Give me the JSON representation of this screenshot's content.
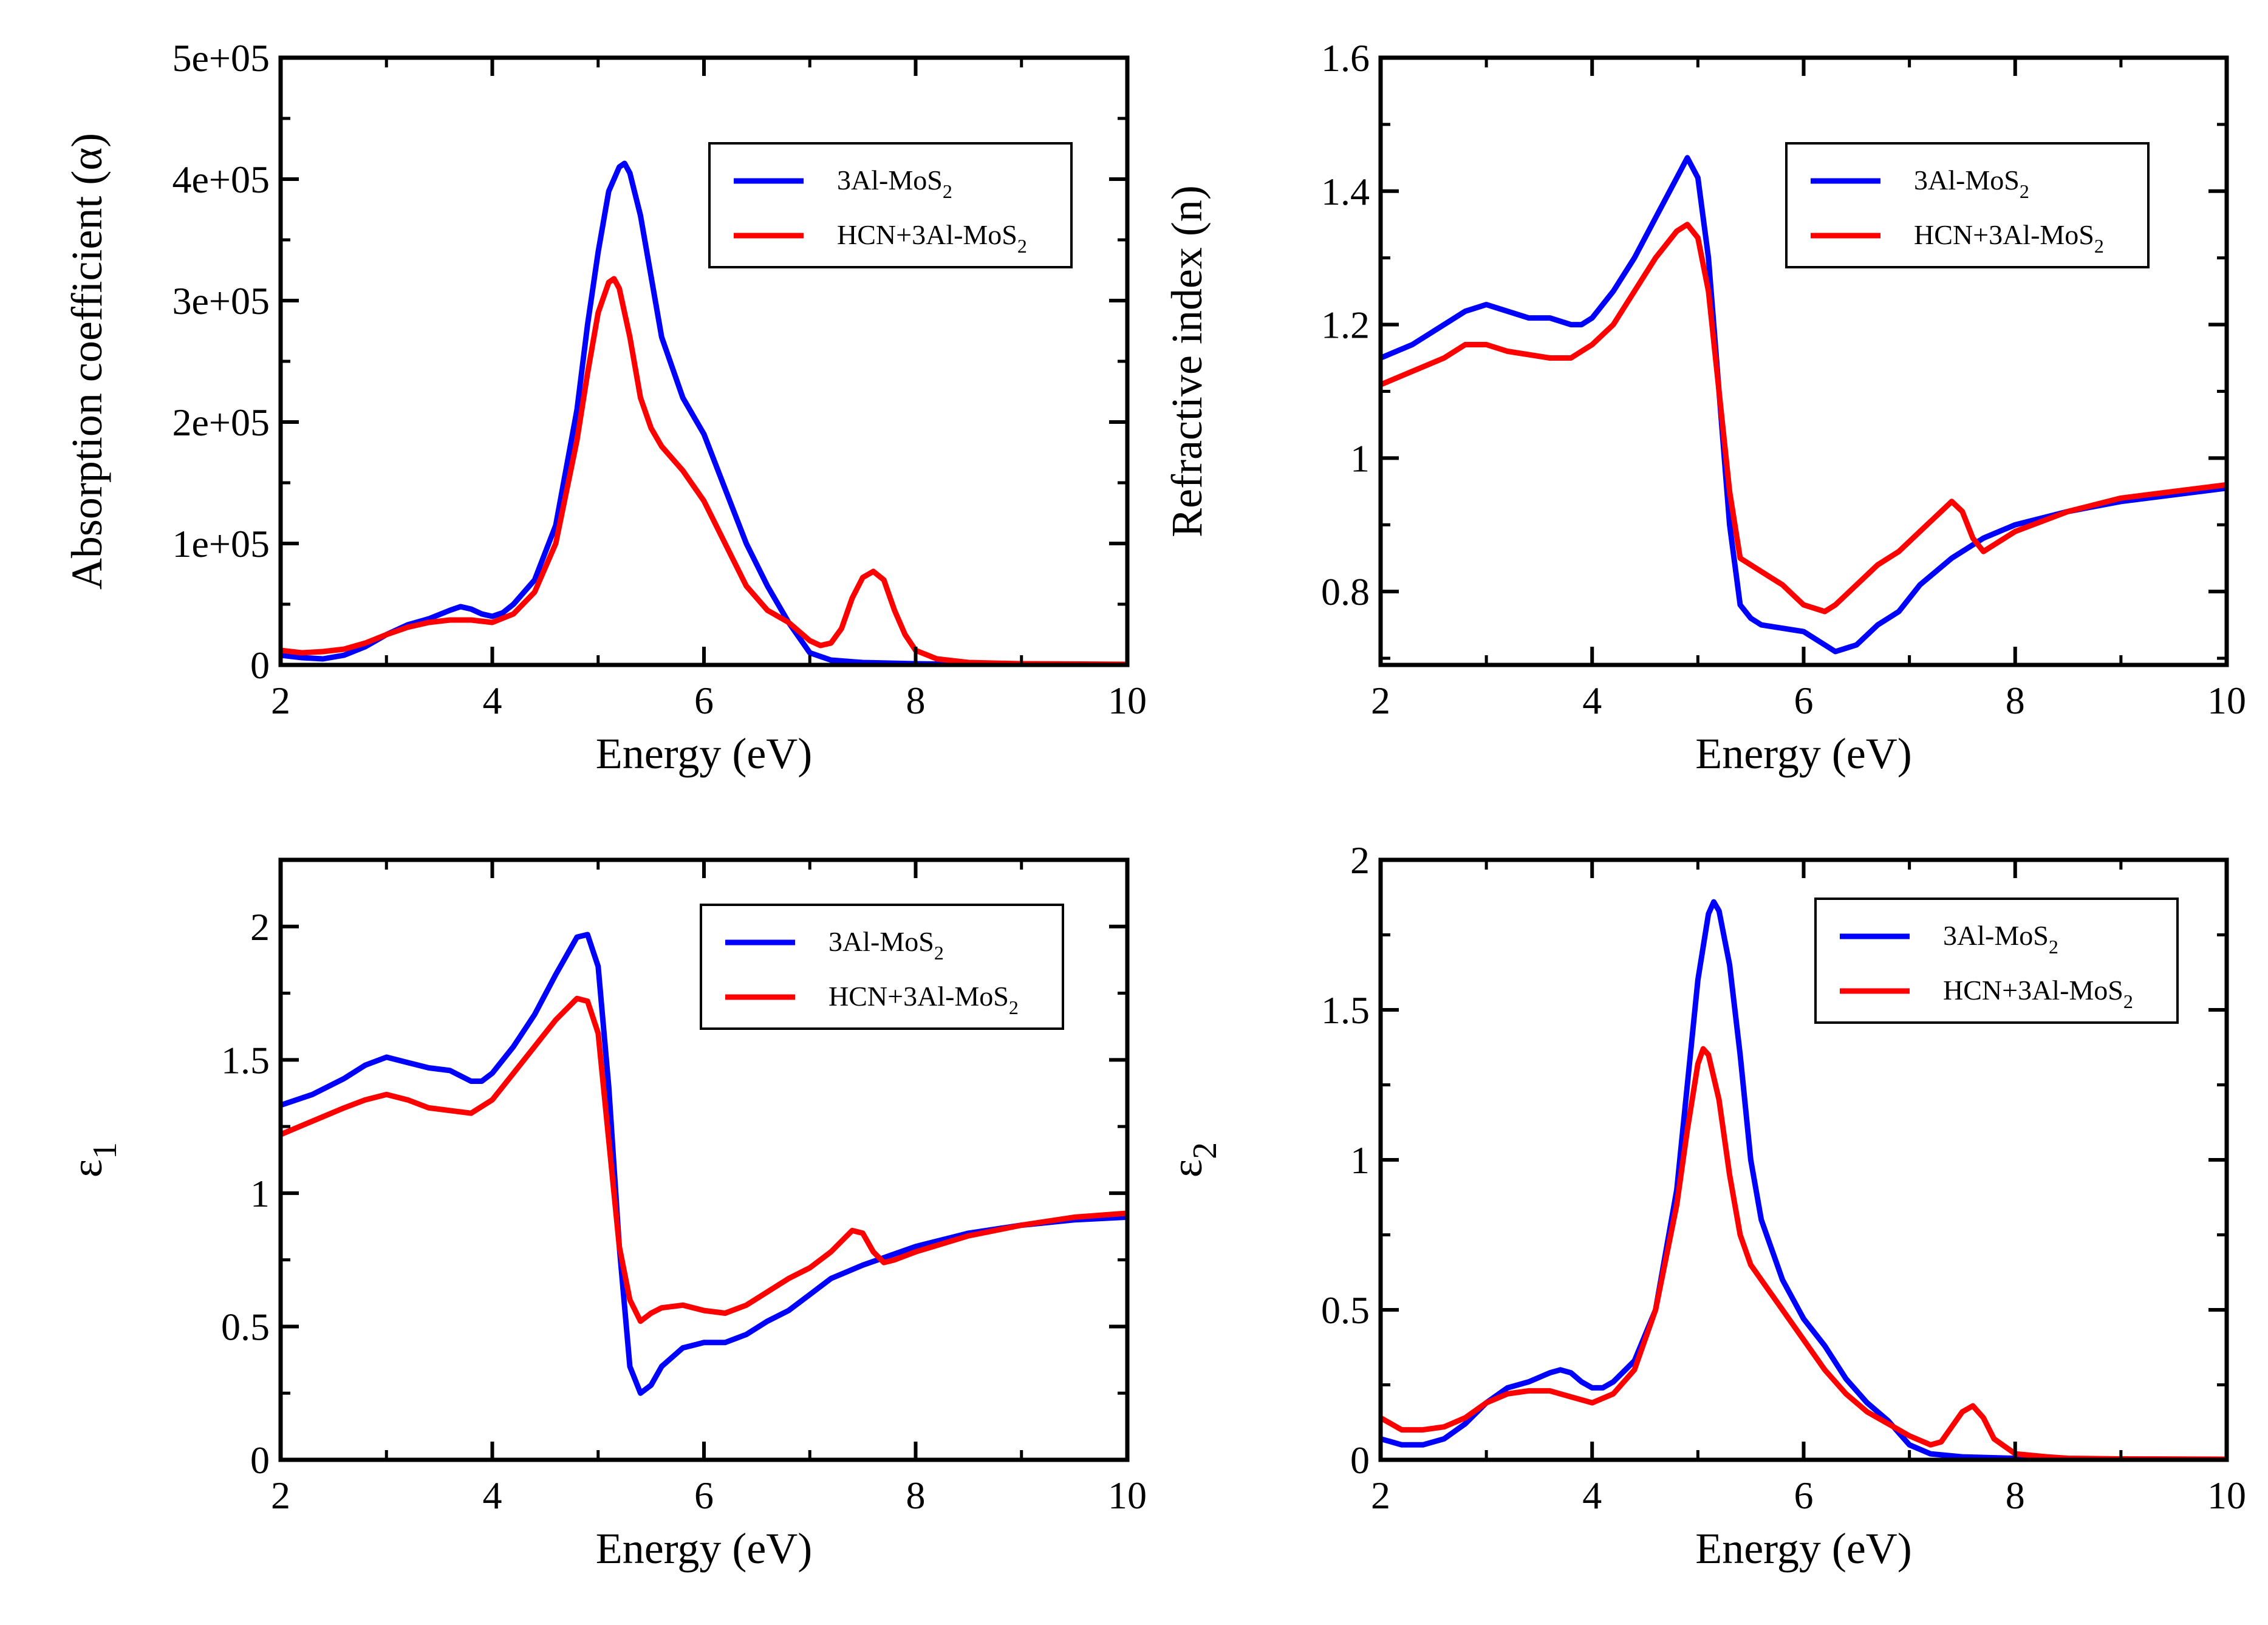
{
  "colors": {
    "series_a": "#0000ff",
    "series_b": "#ff0000",
    "axes": "#000000"
  },
  "chart_data": [
    {
      "type": "line",
      "title": "",
      "xlabel": "Energy (eV)",
      "ylabel": "Absorption coefficient (α)",
      "ylabel_main": "Absorption coefficient (α)",
      "ylabel_sub": "",
      "xlim": [
        2,
        10
      ],
      "ylim": [
        0,
        500000
      ],
      "xticks": [
        2,
        4,
        6,
        8,
        10
      ],
      "xtick_labels": [
        "2",
        "4",
        "6",
        "8",
        "10"
      ],
      "yticks": [
        0,
        100000,
        200000,
        300000,
        400000,
        500000
      ],
      "ytick_labels": [
        "0",
        "1e+05",
        "2e+05",
        "3e+05",
        "4e+05",
        "5e+05"
      ],
      "legend": {
        "position": "top-right",
        "entries": [
          {
            "base": "3Al-MoS",
            "sub": "2"
          },
          {
            "base": "HCN+3Al-MoS",
            "sub": "2"
          }
        ]
      },
      "series": [
        {
          "name": "3Al-MoS2",
          "x": [
            2.0,
            2.2,
            2.4,
            2.6,
            2.8,
            3.0,
            3.2,
            3.4,
            3.6,
            3.7,
            3.8,
            3.9,
            4.0,
            4.1,
            4.2,
            4.4,
            4.6,
            4.8,
            4.9,
            5.0,
            5.1,
            5.2,
            5.25,
            5.3,
            5.4,
            5.5,
            5.6,
            5.8,
            6.0,
            6.2,
            6.4,
            6.6,
            6.8,
            7.0,
            7.2,
            7.5,
            8.0,
            8.5,
            9.0,
            10.0
          ],
          "values": [
            8000,
            6000,
            5000,
            8000,
            15000,
            25000,
            33000,
            38000,
            45000,
            48000,
            46000,
            42000,
            40000,
            43000,
            50000,
            70000,
            115000,
            210000,
            280000,
            340000,
            390000,
            410000,
            413000,
            405000,
            370000,
            320000,
            270000,
            220000,
            190000,
            145000,
            100000,
            65000,
            35000,
            10000,
            4000,
            2000,
            1000,
            500,
            200,
            0
          ]
        },
        {
          "name": "HCN+3Al-MoS2",
          "x": [
            2.0,
            2.2,
            2.4,
            2.6,
            2.8,
            3.0,
            3.2,
            3.4,
            3.6,
            3.8,
            4.0,
            4.2,
            4.4,
            4.6,
            4.8,
            4.9,
            5.0,
            5.1,
            5.15,
            5.2,
            5.3,
            5.4,
            5.5,
            5.6,
            5.8,
            6.0,
            6.2,
            6.4,
            6.6,
            6.8,
            7.0,
            7.1,
            7.2,
            7.3,
            7.4,
            7.5,
            7.6,
            7.7,
            7.8,
            7.9,
            8.0,
            8.2,
            8.5,
            9.0,
            10.0
          ],
          "values": [
            12000,
            10000,
            11000,
            13000,
            18000,
            25000,
            31000,
            35000,
            37000,
            37000,
            35000,
            42000,
            60000,
            100000,
            185000,
            240000,
            290000,
            315000,
            318000,
            310000,
            270000,
            220000,
            195000,
            180000,
            160000,
            135000,
            100000,
            65000,
            45000,
            35000,
            20000,
            16000,
            18000,
            30000,
            55000,
            72000,
            77000,
            70000,
            45000,
            25000,
            12000,
            5000,
            2000,
            1000,
            500
          ]
        }
      ]
    },
    {
      "type": "line",
      "title": "",
      "xlabel": "Energy (eV)",
      "ylabel": "Refractive index (n)",
      "ylabel_main": "Refractive index (n)",
      "ylabel_sub": "",
      "xlim": [
        2,
        10
      ],
      "ylim": [
        0.69,
        1.6
      ],
      "xticks": [
        2,
        4,
        6,
        8,
        10
      ],
      "xtick_labels": [
        "2",
        "4",
        "6",
        "8",
        "10"
      ],
      "yticks": [
        0.8,
        1.0,
        1.2,
        1.4,
        1.6
      ],
      "ytick_labels": [
        "0.8",
        "1",
        "1.2",
        "1.4",
        "1.6"
      ],
      "legend": {
        "position": "top-right",
        "entries": [
          {
            "base": "3Al-MoS",
            "sub": "2"
          },
          {
            "base": "HCN+3Al-MoS",
            "sub": "2"
          }
        ]
      },
      "series": [
        {
          "name": "3Al-MoS2",
          "x": [
            2.0,
            2.3,
            2.6,
            2.8,
            3.0,
            3.2,
            3.4,
            3.6,
            3.8,
            3.9,
            4.0,
            4.2,
            4.4,
            4.6,
            4.8,
            4.9,
            5.0,
            5.1,
            5.2,
            5.3,
            5.4,
            5.5,
            5.6,
            5.8,
            6.0,
            6.2,
            6.3,
            6.5,
            6.7,
            6.9,
            7.1,
            7.4,
            7.7,
            8.0,
            8.5,
            9.0,
            10.0
          ],
          "values": [
            1.15,
            1.17,
            1.2,
            1.22,
            1.23,
            1.22,
            1.21,
            1.21,
            1.2,
            1.2,
            1.21,
            1.25,
            1.3,
            1.36,
            1.42,
            1.45,
            1.42,
            1.3,
            1.1,
            0.9,
            0.78,
            0.76,
            0.75,
            0.745,
            0.74,
            0.72,
            0.71,
            0.72,
            0.75,
            0.77,
            0.81,
            0.85,
            0.88,
            0.9,
            0.92,
            0.935,
            0.955
          ]
        },
        {
          "name": "HCN+3Al-MoS2",
          "x": [
            2.0,
            2.3,
            2.6,
            2.8,
            3.0,
            3.2,
            3.4,
            3.6,
            3.8,
            3.9,
            4.0,
            4.2,
            4.4,
            4.6,
            4.8,
            4.9,
            5.0,
            5.1,
            5.2,
            5.3,
            5.4,
            5.5,
            5.6,
            5.8,
            6.0,
            6.2,
            6.3,
            6.5,
            6.7,
            6.9,
            7.1,
            7.3,
            7.4,
            7.5,
            7.6,
            7.7,
            7.8,
            8.0,
            8.5,
            9.0,
            10.0
          ],
          "values": [
            1.11,
            1.13,
            1.15,
            1.17,
            1.17,
            1.16,
            1.155,
            1.15,
            1.15,
            1.16,
            1.17,
            1.2,
            1.25,
            1.3,
            1.34,
            1.35,
            1.33,
            1.25,
            1.1,
            0.95,
            0.85,
            0.84,
            0.83,
            0.81,
            0.78,
            0.77,
            0.78,
            0.81,
            0.84,
            0.86,
            0.89,
            0.92,
            0.935,
            0.92,
            0.88,
            0.86,
            0.87,
            0.89,
            0.92,
            0.94,
            0.96
          ]
        }
      ]
    },
    {
      "type": "line",
      "title": "",
      "xlabel": "Energy (eV)",
      "ylabel": "ε1",
      "ylabel_main": "ε",
      "ylabel_sub": "1",
      "xlim": [
        2,
        10
      ],
      "ylim": [
        0,
        2.25
      ],
      "xticks": [
        2,
        4,
        6,
        8,
        10
      ],
      "xtick_labels": [
        "2",
        "4",
        "6",
        "8",
        "10"
      ],
      "yticks": [
        0,
        0.5,
        1.0,
        1.5,
        2.0
      ],
      "ytick_labels": [
        "0",
        "0.5",
        "1",
        "1.5",
        "2"
      ],
      "legend": {
        "position": "top-right",
        "entries": [
          {
            "base": "3Al-MoS",
            "sub": "2"
          },
          {
            "base": "HCN+3Al-MoS",
            "sub": "2"
          }
        ]
      },
      "series": [
        {
          "name": "3Al-MoS2",
          "x": [
            2.0,
            2.3,
            2.6,
            2.8,
            3.0,
            3.2,
            3.4,
            3.6,
            3.8,
            3.9,
            4.0,
            4.2,
            4.4,
            4.6,
            4.8,
            4.9,
            5.0,
            5.1,
            5.2,
            5.3,
            5.4,
            5.5,
            5.6,
            5.8,
            6.0,
            6.2,
            6.4,
            6.6,
            6.8,
            7.0,
            7.2,
            7.5,
            8.0,
            8.5,
            9.0,
            9.5,
            10.0
          ],
          "values": [
            1.33,
            1.37,
            1.43,
            1.48,
            1.51,
            1.49,
            1.47,
            1.46,
            1.42,
            1.42,
            1.45,
            1.55,
            1.67,
            1.82,
            1.96,
            1.97,
            1.85,
            1.4,
            0.8,
            0.35,
            0.25,
            0.28,
            0.35,
            0.42,
            0.44,
            0.44,
            0.47,
            0.52,
            0.56,
            0.62,
            0.68,
            0.73,
            0.8,
            0.85,
            0.88,
            0.9,
            0.91
          ]
        },
        {
          "name": "HCN+3Al-MoS2",
          "x": [
            2.0,
            2.3,
            2.6,
            2.8,
            3.0,
            3.2,
            3.4,
            3.6,
            3.8,
            4.0,
            4.2,
            4.4,
            4.6,
            4.8,
            4.9,
            5.0,
            5.1,
            5.2,
            5.3,
            5.4,
            5.5,
            5.6,
            5.8,
            6.0,
            6.2,
            6.4,
            6.6,
            6.8,
            7.0,
            7.2,
            7.4,
            7.5,
            7.6,
            7.7,
            7.8,
            8.0,
            8.5,
            9.0,
            9.5,
            10.0
          ],
          "values": [
            1.22,
            1.27,
            1.32,
            1.35,
            1.37,
            1.35,
            1.32,
            1.31,
            1.3,
            1.35,
            1.45,
            1.55,
            1.65,
            1.73,
            1.72,
            1.6,
            1.2,
            0.8,
            0.6,
            0.52,
            0.55,
            0.57,
            0.58,
            0.56,
            0.55,
            0.58,
            0.63,
            0.68,
            0.72,
            0.78,
            0.86,
            0.85,
            0.78,
            0.74,
            0.75,
            0.78,
            0.84,
            0.88,
            0.91,
            0.925
          ]
        }
      ]
    },
    {
      "type": "line",
      "title": "",
      "xlabel": "Energy (eV)",
      "ylabel": "ε2",
      "ylabel_main": "ε",
      "ylabel_sub": "2",
      "xlim": [
        2,
        10
      ],
      "ylim": [
        0,
        2.0
      ],
      "xticks": [
        2,
        4,
        6,
        8,
        10
      ],
      "xtick_labels": [
        "2",
        "4",
        "6",
        "8",
        "10"
      ],
      "yticks": [
        0,
        0.5,
        1.0,
        1.5,
        2.0
      ],
      "ytick_labels": [
        "0",
        "0.5",
        "1",
        "1.5",
        "2"
      ],
      "legend": {
        "position": "top-right",
        "entries": [
          {
            "base": "3Al-MoS",
            "sub": "2"
          },
          {
            "base": "HCN+3Al-MoS",
            "sub": "2"
          }
        ]
      },
      "series": [
        {
          "name": "3Al-MoS2",
          "x": [
            2.0,
            2.2,
            2.4,
            2.6,
            2.8,
            3.0,
            3.2,
            3.4,
            3.6,
            3.7,
            3.8,
            3.9,
            4.0,
            4.1,
            4.2,
            4.4,
            4.6,
            4.8,
            4.9,
            5.0,
            5.1,
            5.15,
            5.2,
            5.3,
            5.4,
            5.5,
            5.6,
            5.8,
            6.0,
            6.2,
            6.4,
            6.6,
            6.8,
            7.0,
            7.2,
            7.5,
            8.0,
            8.5,
            9.0,
            10.0
          ],
          "values": [
            0.07,
            0.05,
            0.05,
            0.07,
            0.12,
            0.19,
            0.24,
            0.26,
            0.29,
            0.3,
            0.29,
            0.26,
            0.24,
            0.24,
            0.26,
            0.33,
            0.5,
            0.9,
            1.25,
            1.6,
            1.82,
            1.86,
            1.83,
            1.65,
            1.35,
            1.0,
            0.8,
            0.6,
            0.47,
            0.38,
            0.27,
            0.19,
            0.13,
            0.05,
            0.02,
            0.01,
            0.005,
            0.003,
            0.002,
            0.001
          ]
        },
        {
          "name": "HCN+3Al-MoS2",
          "x": [
            2.0,
            2.2,
            2.4,
            2.6,
            2.8,
            3.0,
            3.2,
            3.4,
            3.6,
            3.8,
            4.0,
            4.2,
            4.4,
            4.6,
            4.8,
            4.9,
            5.0,
            5.05,
            5.1,
            5.2,
            5.3,
            5.4,
            5.5,
            5.6,
            5.8,
            6.0,
            6.2,
            6.4,
            6.6,
            6.8,
            7.0,
            7.2,
            7.3,
            7.4,
            7.5,
            7.6,
            7.7,
            7.8,
            8.0,
            8.3,
            8.5,
            9.0,
            10.0
          ],
          "values": [
            0.14,
            0.1,
            0.1,
            0.11,
            0.14,
            0.19,
            0.22,
            0.23,
            0.23,
            0.21,
            0.19,
            0.22,
            0.3,
            0.5,
            0.85,
            1.1,
            1.32,
            1.37,
            1.35,
            1.2,
            0.95,
            0.75,
            0.65,
            0.6,
            0.5,
            0.4,
            0.3,
            0.22,
            0.16,
            0.12,
            0.08,
            0.05,
            0.06,
            0.11,
            0.16,
            0.18,
            0.14,
            0.07,
            0.02,
            0.01,
            0.005,
            0.003,
            0.002
          ]
        }
      ]
    }
  ]
}
